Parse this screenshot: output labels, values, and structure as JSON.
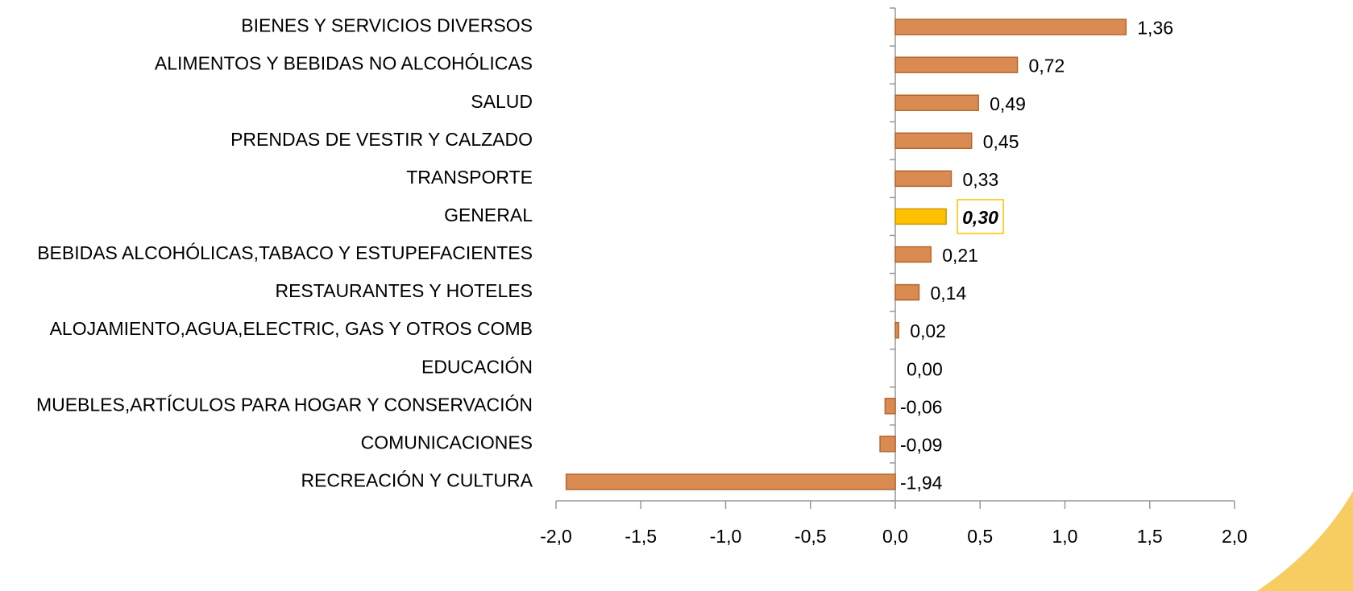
{
  "chart_data": {
    "type": "hbar",
    "categories": [
      "BIENES Y SERVICIOS DIVERSOS",
      "ALIMENTOS Y BEBIDAS NO ALCOHÓLICAS",
      "SALUD",
      "PRENDAS DE VESTIR Y CALZADO",
      "TRANSPORTE",
      "GENERAL",
      "BEBIDAS ALCOHÓLICAS,TABACO Y ESTUPEFACIENTES",
      "RESTAURANTES Y HOTELES",
      "ALOJAMIENTO,AGUA,ELECTRIC, GAS Y OTROS COMB",
      "EDUCACIÓN",
      "MUEBLES,ARTÍCULOS PARA HOGAR Y CONSERVACIÓN",
      "COMUNICACIONES",
      "RECREACIÓN Y CULTURA"
    ],
    "values": [
      1.36,
      0.72,
      0.49,
      0.45,
      0.33,
      0.3,
      0.21,
      0.14,
      0.02,
      0.0,
      -0.06,
      -0.09,
      -1.94
    ],
    "value_labels": [
      "1,36",
      "0,72",
      "0,49",
      "0,45",
      "0,33",
      "0,30",
      "0,21",
      "0,14",
      "0,02",
      "0,00",
      "-0,06",
      "-0,09",
      "-1,94"
    ],
    "color": "#d98b51",
    "colors": [
      "#d98b51",
      "#d98b51",
      "#d98b51",
      "#d98b51",
      "#d98b51",
      "#ffc000",
      "#d98b51",
      "#d98b51",
      "#d98b51",
      "#d98b51",
      "#d98b51",
      "#d98b51",
      "#d98b51"
    ],
    "xlim": [
      -2.0,
      2.0
    ],
    "xticks": [
      {
        "value": -2.0,
        "label": "-2,0"
      },
      {
        "value": -1.5,
        "label": "-1,5"
      },
      {
        "value": -1.0,
        "label": "-1,0"
      },
      {
        "value": -0.5,
        "label": "-0,5"
      },
      {
        "value": 0.0,
        "label": "0,0"
      },
      {
        "value": 0.5,
        "label": "0,5"
      },
      {
        "value": 1.0,
        "label": "1,0"
      },
      {
        "value": 1.5,
        "label": "1,5"
      },
      {
        "value": 2.0,
        "label": "2,0"
      }
    ]
  }
}
